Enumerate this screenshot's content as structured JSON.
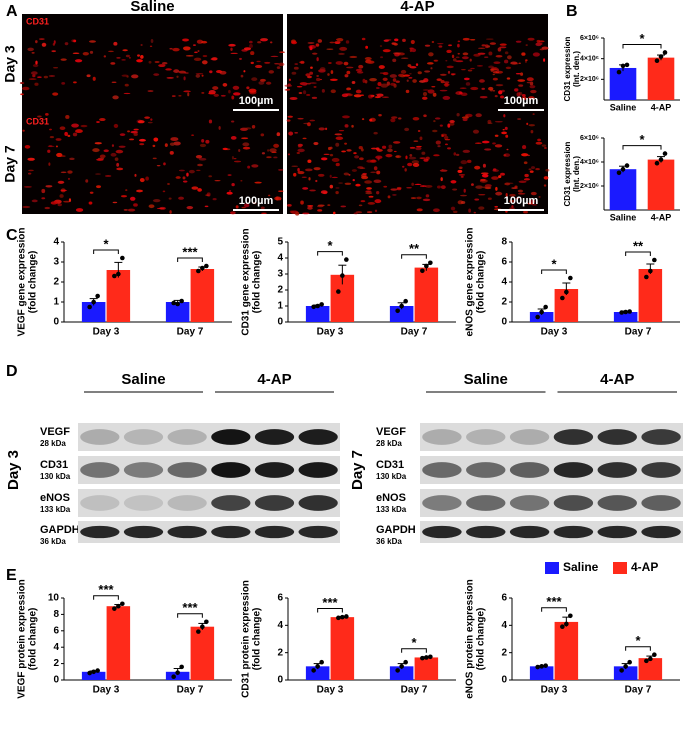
{
  "panel_labels": [
    "A",
    "B",
    "C",
    "D",
    "E"
  ],
  "microscopy": {
    "columns": [
      "Saline",
      "4-AP"
    ],
    "rows": [
      "Day 3",
      "Day 7"
    ],
    "stain": "CD31",
    "scale_bar": "100µm"
  },
  "blots": [
    {
      "day": "Day 3",
      "groups": [
        "Saline",
        "4-AP"
      ],
      "rows": [
        {
          "protein": "VEGF",
          "size": "28 kDa"
        },
        {
          "protein": "CD31",
          "size": "130 kDa"
        },
        {
          "protein": "eNOS",
          "size": "133 kDa"
        },
        {
          "protein": "GAPDH",
          "size": "36 kDa"
        }
      ]
    },
    {
      "day": "Day 7",
      "groups": [
        "Saline",
        "4-AP"
      ],
      "rows": [
        {
          "protein": "VEGF",
          "size": "28 kDa"
        },
        {
          "protein": "CD31",
          "size": "130 kDa"
        },
        {
          "protein": "eNOS",
          "size": "133 kDa"
        },
        {
          "protein": "GAPDH",
          "size": "36 kDa"
        }
      ]
    }
  ],
  "chart_data": [
    {
      "type": "bar",
      "ylabel": [
        "CD31 expression",
        "(Int. den.)"
      ],
      "categories": [
        "Saline",
        "4-AP"
      ],
      "values": [
        3100000,
        4100000
      ],
      "errors": [
        300000,
        250000
      ],
      "points": [
        [
          2700000,
          3300000,
          3400000
        ],
        [
          3800000,
          4200000,
          4600000
        ]
      ],
      "colors": [
        "#1a1aff",
        "#ff2a1a"
      ],
      "ylim": [
        0,
        6000000
      ],
      "yticks": [
        {
          "value": 2000000,
          "label": "2×10⁶"
        },
        {
          "value": 4000000,
          "label": "4×10⁶"
        },
        {
          "value": 6000000,
          "label": "6×10⁶"
        }
      ],
      "significance": [
        "*"
      ]
    },
    {
      "type": "bar",
      "ylabel": [
        "CD31 expression",
        "(Int. den.)"
      ],
      "categories": [
        "Saline",
        "4-AP"
      ],
      "values": [
        3400000,
        4200000
      ],
      "errors": [
        250000,
        250000
      ],
      "points": [
        [
          3100000,
          3400000,
          3700000
        ],
        [
          3900000,
          4200000,
          4700000
        ]
      ],
      "colors": [
        "#1a1aff",
        "#ff2a1a"
      ],
      "ylim": [
        0,
        6000000
      ],
      "yticks": [
        {
          "value": 2000000,
          "label": "2×10⁶"
        },
        {
          "value": 4000000,
          "label": "4×10⁶"
        },
        {
          "value": 6000000,
          "label": "6×10⁶"
        }
      ],
      "significance": [
        "*"
      ]
    },
    {
      "type": "grouped_bar",
      "ylabel": [
        "VEGF gene expression",
        "(fold change)"
      ],
      "categories": [
        "Day 3",
        "Day 7"
      ],
      "series": [
        {
          "name": "Saline",
          "color": "#1a1aff",
          "values": [
            1.0,
            1.0
          ],
          "errors": [
            0.17,
            0.08
          ],
          "points": [
            [
              0.75,
              1.0,
              1.3
            ],
            [
              0.95,
              0.9,
              1.05
            ]
          ]
        },
        {
          "name": "4-AP",
          "color": "#ff2a1a",
          "values": [
            2.6,
            2.65
          ],
          "errors": [
            0.38,
            0.1
          ],
          "points": [
            [
              2.3,
              2.4,
              3.2
            ],
            [
              2.55,
              2.7,
              2.8
            ]
          ]
        }
      ],
      "ylim": [
        0,
        4
      ],
      "yticks": [
        0,
        1,
        2,
        3,
        4
      ],
      "significance": [
        "*",
        "***"
      ]
    },
    {
      "type": "grouped_bar",
      "ylabel": [
        "CD31 gene expression",
        "(fold change)"
      ],
      "categories": [
        "Day 3",
        "Day 7"
      ],
      "series": [
        {
          "name": "Saline",
          "color": "#1a1aff",
          "values": [
            1.0,
            1.0
          ],
          "errors": [
            0.06,
            0.2
          ],
          "points": [
            [
              0.95,
              1.0,
              1.1
            ],
            [
              0.7,
              1.0,
              1.3
            ]
          ]
        },
        {
          "name": "4-AP",
          "color": "#ff2a1a",
          "values": [
            2.95,
            3.4
          ],
          "errors": [
            0.6,
            0.2
          ],
          "points": [
            [
              1.9,
              2.9,
              3.9
            ],
            [
              3.2,
              3.5,
              3.7
            ]
          ]
        }
      ],
      "ylim": [
        0,
        5
      ],
      "yticks": [
        0,
        1,
        2,
        3,
        4,
        5
      ],
      "significance": [
        "*",
        "**"
      ]
    },
    {
      "type": "grouped_bar",
      "ylabel": [
        "eNOS gene expression",
        "(fold change)"
      ],
      "categories": [
        "Day 3",
        "Day 7"
      ],
      "series": [
        {
          "name": "Saline",
          "color": "#1a1aff",
          "values": [
            1.0,
            1.0
          ],
          "errors": [
            0.3,
            0.1
          ],
          "points": [
            [
              0.5,
              1.0,
              1.5
            ],
            [
              0.95,
              1.0,
              1.05
            ]
          ]
        },
        {
          "name": "4-AP",
          "color": "#ff2a1a",
          "values": [
            3.3,
            5.3
          ],
          "errors": [
            0.6,
            0.5
          ],
          "points": [
            [
              2.4,
              3.0,
              4.4
            ],
            [
              4.5,
              5.1,
              6.2
            ]
          ]
        }
      ],
      "ylim": [
        0,
        8
      ],
      "yticks": [
        0,
        2,
        4,
        6,
        8
      ],
      "significance": [
        "*",
        "**"
      ]
    },
    {
      "type": "grouped_bar",
      "ylabel": [
        "VEGF protein expression",
        "(fold change)"
      ],
      "categories": [
        "Day 3",
        "Day 7"
      ],
      "series": [
        {
          "name": "Saline",
          "color": "#1a1aff",
          "values": [
            1.0,
            1.0
          ],
          "errors": [
            0.1,
            0.4
          ],
          "points": [
            [
              0.85,
              1.0,
              1.15
            ],
            [
              0.4,
              0.9,
              1.6
            ]
          ]
        },
        {
          "name": "4-AP",
          "color": "#ff2a1a",
          "values": [
            9.0,
            6.5
          ],
          "errors": [
            0.2,
            0.4
          ],
          "points": [
            [
              8.7,
              9.0,
              9.3
            ],
            [
              5.9,
              6.5,
              7.1
            ]
          ]
        }
      ],
      "ylim": [
        0,
        10
      ],
      "yticks": [
        0,
        2,
        4,
        6,
        8,
        10
      ],
      "significance": [
        "***",
        "***"
      ]
    },
    {
      "type": "grouped_bar",
      "ylabel": [
        "CD31 protein expression",
        "(fold change)"
      ],
      "categories": [
        "Day 3",
        "Day 7"
      ],
      "series": [
        {
          "name": "Saline",
          "color": "#1a1aff",
          "values": [
            1.0,
            1.0
          ],
          "errors": [
            0.2,
            0.2
          ],
          "points": [
            [
              0.7,
              1.0,
              1.3
            ],
            [
              0.7,
              1.0,
              1.3
            ]
          ]
        },
        {
          "name": "4-AP",
          "color": "#ff2a1a",
          "values": [
            4.6,
            1.65
          ],
          "errors": [
            0.05,
            0.05
          ],
          "points": [
            [
              4.55,
              4.6,
              4.65
            ],
            [
              1.6,
              1.65,
              1.7
            ]
          ]
        }
      ],
      "ylim": [
        0,
        6
      ],
      "yticks": [
        0,
        2,
        4,
        6
      ],
      "significance": [
        "***",
        "*"
      ]
    },
    {
      "type": "grouped_bar",
      "ylabel": [
        "eNOS protein expression",
        "(fold change)"
      ],
      "categories": [
        "Day 3",
        "Day 7"
      ],
      "series": [
        {
          "name": "Saline",
          "color": "#1a1aff",
          "values": [
            1.0,
            1.0
          ],
          "errors": [
            0.04,
            0.2
          ],
          "points": [
            [
              0.95,
              1.0,
              1.05
            ],
            [
              0.7,
              1.0,
              1.3
            ]
          ]
        },
        {
          "name": "4-AP",
          "color": "#ff2a1a",
          "values": [
            4.25,
            1.6
          ],
          "errors": [
            0.35,
            0.15
          ],
          "points": [
            [
              3.9,
              4.1,
              4.7
            ],
            [
              1.4,
              1.55,
              1.85
            ]
          ]
        }
      ],
      "ylim": [
        0,
        6
      ],
      "yticks": [
        0,
        2,
        4,
        6
      ],
      "significance": [
        "***",
        "*"
      ],
      "legend": "top-right"
    }
  ]
}
